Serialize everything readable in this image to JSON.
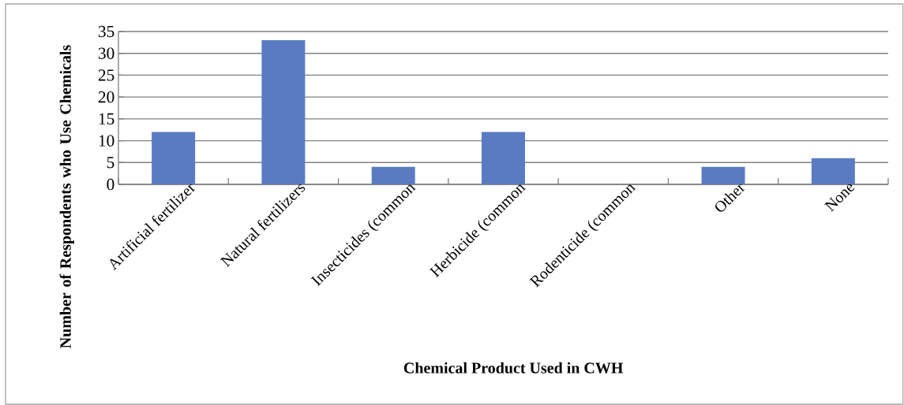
{
  "chart_data": {
    "type": "bar",
    "xlabel": "Chemical Product Used in CWH",
    "ylabel": "Number of Respondents who Use Chemicals",
    "categories": [
      "Artificial fertilizer",
      "Natural fertilizers",
      "Insecticides (common",
      "Herbicide (common",
      "Rodenticide (common",
      "Other",
      "None"
    ],
    "values": [
      12,
      33,
      4,
      12,
      0,
      4,
      6
    ],
    "color": "#5a7bc2",
    "ylim": [
      0,
      35
    ],
    "yticks": [
      0,
      5,
      10,
      15,
      20,
      25,
      30,
      35
    ],
    "grid": "y"
  }
}
